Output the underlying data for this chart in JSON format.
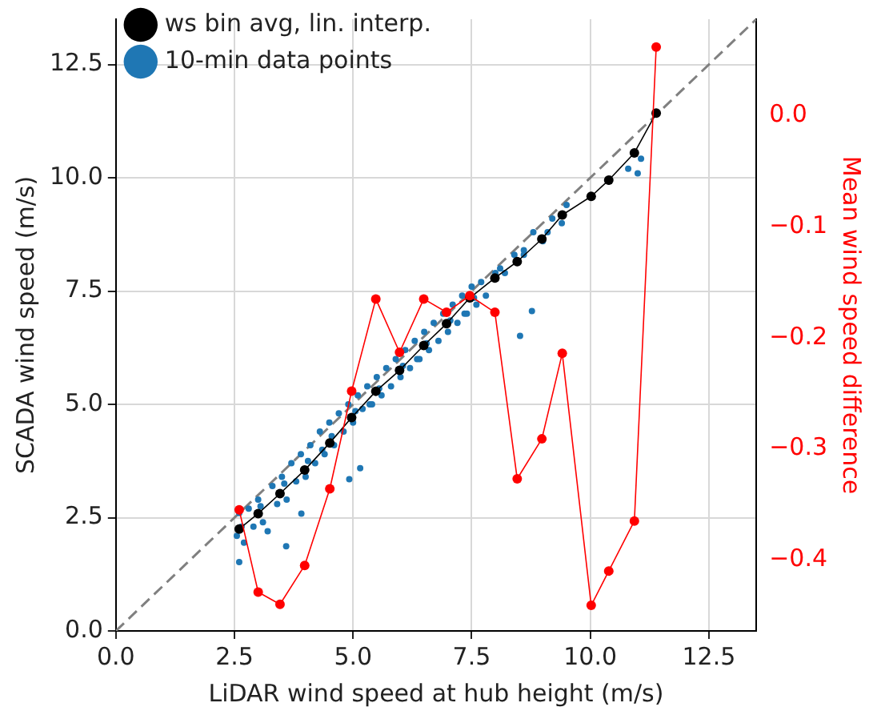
{
  "chart_data": {
    "type": "scatter",
    "xlabel": "LiDAR wind speed at hub height (m/s)",
    "ylabel": "SCADA wind speed (m/s)",
    "y2label": "Mean wind speed difference",
    "xlim": [
      0,
      13.5
    ],
    "ylim": [
      0,
      13.5
    ],
    "y2lim": [
      -0.464,
      0.087
    ],
    "xticks": [
      {
        "value": 0,
        "label": "0.0"
      },
      2.5,
      {
        "value": 5,
        "label": "5.0"
      },
      7.5,
      {
        "value": 10,
        "label": "10.0"
      },
      12.5
    ],
    "yticks": [
      {
        "value": 0,
        "label": "0.0"
      },
      2.5,
      {
        "value": 5,
        "label": "5.0"
      },
      7.5,
      {
        "value": 10,
        "label": "10.0"
      },
      12.5
    ],
    "y2ticks": [
      {
        "value": 0,
        "label": "0.0"
      },
      {
        "value": -0.1,
        "label": "−0.1"
      },
      {
        "value": -0.2,
        "label": "−0.2"
      },
      {
        "value": -0.3,
        "label": "−0.3"
      },
      {
        "value": -0.4,
        "label": "−0.4"
      }
    ],
    "grid": true,
    "legend": "top left",
    "series": [
      {
        "name": "ws bin avg, lin. interp.",
        "type": "line",
        "color": "#000000",
        "marker": "circle",
        "x": [
          2.6,
          3.0,
          3.46,
          3.98,
          4.51,
          4.97,
          5.48,
          5.98,
          6.49,
          6.97,
          7.46,
          7.99,
          8.46,
          8.98,
          9.41,
          10.02,
          10.39,
          10.93,
          11.39
        ],
        "values": [
          2.25,
          2.59,
          3.03,
          3.55,
          4.15,
          4.71,
          5.29,
          5.75,
          6.3,
          6.78,
          7.35,
          7.79,
          8.15,
          8.65,
          9.18,
          9.59,
          9.95,
          10.55,
          11.43
        ]
      },
      {
        "name": "10-min data points",
        "type": "scatter",
        "color": "#1f77b4",
        "marker": "circle",
        "x": [
          3.05,
          3.55,
          4.05,
          4.55,
          5.05,
          5.55,
          6.05,
          6.55,
          7.05,
          7.55,
          8.1,
          8.6,
          9.1,
          4.35,
          5.35,
          6.35,
          7.35,
          2.55,
          2.6,
          2.6,
          2.65,
          2.7,
          2.8,
          2.9,
          3.0,
          3.1,
          3.2,
          3.3,
          3.4,
          3.5,
          3.59,
          3.6,
          3.7,
          3.8,
          3.9,
          3.91,
          4.0,
          4.1,
          4.2,
          4.3,
          4.4,
          4.5,
          4.6,
          4.7,
          4.8,
          4.9,
          4.92,
          5.0,
          5.1,
          5.15,
          5.2,
          5.3,
          5.4,
          5.5,
          5.6,
          5.7,
          5.8,
          5.9,
          6.0,
          6.1,
          6.2,
          6.3,
          6.4,
          6.5,
          6.6,
          6.7,
          6.8,
          6.9,
          7.0,
          7.1,
          7.2,
          7.3,
          7.4,
          7.5,
          7.6,
          7.7,
          7.8,
          8.0,
          8.2,
          8.4,
          8.52,
          8.6,
          8.77,
          8.8,
          9.0,
          9.2,
          9.4,
          9.5,
          10.8,
          11.0,
          11.07
        ],
        "values": [
          2.75,
          3.25,
          3.75,
          4.3,
          4.85,
          5.35,
          5.85,
          6.35,
          6.85,
          7.35,
          8.0,
          8.4,
          8.8,
          4.0,
          5.0,
          6.0,
          7.0,
          2.1,
          2.6,
          1.52,
          2.3,
          1.95,
          2.7,
          2.3,
          2.9,
          2.4,
          2.2,
          3.2,
          2.8,
          3.4,
          1.87,
          2.9,
          3.7,
          3.3,
          3.9,
          2.59,
          3.4,
          4.1,
          3.7,
          4.4,
          3.9,
          4.6,
          4.1,
          4.8,
          4.4,
          5.0,
          3.35,
          4.6,
          5.2,
          3.59,
          4.9,
          5.4,
          5.0,
          5.6,
          5.2,
          5.8,
          5.4,
          6.0,
          5.6,
          6.2,
          5.8,
          6.4,
          6.0,
          6.6,
          6.2,
          6.8,
          6.4,
          7.0,
          6.6,
          7.2,
          6.8,
          7.4,
          7.0,
          7.6,
          7.2,
          7.7,
          7.4,
          7.9,
          7.9,
          8.3,
          6.51,
          8.3,
          7.06,
          8.8,
          8.6,
          9.1,
          9.0,
          9.4,
          10.2,
          10.1,
          10.42
        ]
      },
      {
        "type": "line",
        "color": "#808080",
        "marker": "none",
        "line_style": "dashed",
        "x": [
          0,
          13.5
        ],
        "values": [
          0,
          13.5
        ]
      },
      {
        "type": "line",
        "axis": "y2",
        "color": "#ff0000",
        "marker": "circle",
        "x": [
          2.6,
          3.0,
          3.46,
          3.98,
          4.51,
          4.97,
          5.48,
          5.98,
          6.49,
          6.97,
          7.46,
          7.99,
          8.46,
          8.98,
          9.41,
          10.02,
          10.39,
          10.93,
          11.39
        ],
        "values": [
          -0.355,
          -0.429,
          -0.44,
          -0.405,
          -0.336,
          -0.248,
          -0.165,
          -0.213,
          -0.165,
          -0.177,
          -0.162,
          -0.177,
          -0.327,
          -0.291,
          -0.214,
          -0.441,
          -0.41,
          -0.365,
          0.062
        ]
      }
    ]
  }
}
